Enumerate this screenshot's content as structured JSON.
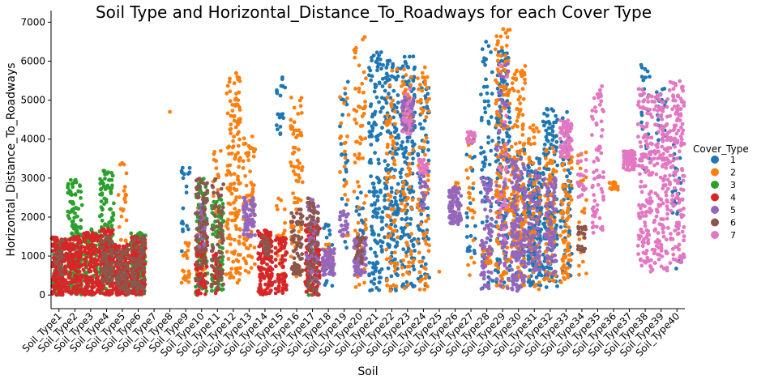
{
  "chart_data": {
    "type": "scatter",
    "subtype": "swarm",
    "title": "Soil Type and Horizontal_Distance_To_Roadways for each Cover Type",
    "xlabel": "Soil",
    "ylabel": "Horizontal_Distance_To_Roadways",
    "ylim": [
      -350,
      7300
    ],
    "yticks": [
      0,
      1000,
      2000,
      3000,
      4000,
      5000,
      6000,
      7000
    ],
    "categories": [
      "Soil_Type1",
      "Soil_Type2",
      "Soil_Type3",
      "Soil_Type4",
      "Soil_Type5",
      "Soil_Type6",
      "Soil_Type7",
      "Soil_Type8",
      "Soil_Type9",
      "Soil_Type10",
      "Soil_Type11",
      "Soil_Type12",
      "Soil_Type13",
      "Soil_Type14",
      "Soil_Type15",
      "Soil_Type16",
      "Soil_Type17",
      "Soil_Type18",
      "Soil_Type19",
      "Soil_Type20",
      "Soil_Type21",
      "Soil_Type22",
      "Soil_Type23",
      "Soil_Type24",
      "Soil_Type25",
      "Soil_Type26",
      "Soil_Type27",
      "Soil_Type28",
      "Soil_Type29",
      "Soil_Type30",
      "Soil_Type31",
      "Soil_Type32",
      "Soil_Type33",
      "Soil_Type34",
      "Soil_Type35",
      "Soil_Type36",
      "Soil_Type37",
      "Soil_Type38",
      "Soil_Type39",
      "Soil_Type40"
    ],
    "grid": false,
    "legend": {
      "title": "Cover_Type",
      "placement": "right",
      "entries": [
        "1",
        "2",
        "3",
        "4",
        "5",
        "6",
        "7"
      ]
    },
    "colors": {
      "1": "#1f77b4",
      "2": "#ff7f0e",
      "3": "#2ca02c",
      "4": "#d62728",
      "5": "#9467bd",
      "6": "#8c564b",
      "7": "#e377c2"
    },
    "series": [
      {
        "name": "1",
        "ranges": [
          {
            "category": "Soil_Type9",
            "y_min": 1100,
            "y_max": 3300,
            "density": "low"
          },
          {
            "category": "Soil_Type10",
            "y_min": 1000,
            "y_max": 2800,
            "density": "low"
          },
          {
            "category": "Soil_Type15",
            "y_min": 4100,
            "y_max": 5700,
            "density": "low"
          },
          {
            "category": "Soil_Type18",
            "y_min": 100,
            "y_max": 2000,
            "density": "low"
          },
          {
            "category": "Soil_Type19",
            "y_min": 1100,
            "y_max": 5500,
            "density": "low"
          },
          {
            "category": "Soil_Type20",
            "y_min": 1000,
            "y_max": 2700,
            "density": "low"
          },
          {
            "category": "Soil_Type21",
            "y_min": 100,
            "y_max": 6300,
            "density": "high"
          },
          {
            "category": "Soil_Type22",
            "y_min": 100,
            "y_max": 6100,
            "density": "high"
          },
          {
            "category": "Soil_Type23",
            "y_min": 100,
            "y_max": 6200,
            "density": "high"
          },
          {
            "category": "Soil_Type24",
            "y_min": 100,
            "y_max": 5600,
            "density": "medium"
          },
          {
            "category": "Soil_Type27",
            "y_min": 1000,
            "y_max": 4000,
            "density": "low"
          },
          {
            "category": "Soil_Type28",
            "y_min": 100,
            "y_max": 6500,
            "density": "medium"
          },
          {
            "category": "Soil_Type29",
            "y_min": 200,
            "y_max": 6400,
            "density": "high"
          },
          {
            "category": "Soil_Type30",
            "y_min": 200,
            "y_max": 3800,
            "density": "medium"
          },
          {
            "category": "Soil_Type31",
            "y_min": 200,
            "y_max": 3600,
            "density": "high"
          },
          {
            "category": "Soil_Type32",
            "y_min": 200,
            "y_max": 4800,
            "density": "high"
          },
          {
            "category": "Soil_Type33",
            "y_min": 300,
            "y_max": 4700,
            "density": "medium"
          },
          {
            "category": "Soil_Type38",
            "y_min": 3000,
            "y_max": 6100,
            "density": "low"
          },
          {
            "category": "Soil_Type39",
            "y_min": 3800,
            "y_max": 5300,
            "density": "low"
          },
          {
            "category": "Soil_Type40",
            "y_min": 300,
            "y_max": 4000,
            "density": "low"
          }
        ]
      },
      {
        "name": "2",
        "ranges": [
          {
            "category": "Soil_Type5",
            "y_min": 1200,
            "y_max": 3400,
            "density": "low"
          },
          {
            "category": "Soil_Type8",
            "y_min": 4700,
            "y_max": 4700,
            "density": "single"
          },
          {
            "category": "Soil_Type9",
            "y_min": 300,
            "y_max": 1400,
            "density": "low"
          },
          {
            "category": "Soil_Type10",
            "y_min": 200,
            "y_max": 3100,
            "density": "low"
          },
          {
            "category": "Soil_Type11",
            "y_min": 300,
            "y_max": 3700,
            "density": "low"
          },
          {
            "category": "Soil_Type12",
            "y_min": 300,
            "y_max": 5700,
            "density": "high"
          },
          {
            "category": "Soil_Type13",
            "y_min": 500,
            "y_max": 4100,
            "density": "medium"
          },
          {
            "category": "Soil_Type15",
            "y_min": 400,
            "y_max": 2600,
            "density": "low"
          },
          {
            "category": "Soil_Type16",
            "y_min": 400,
            "y_max": 5100,
            "density": "medium"
          },
          {
            "category": "Soil_Type18",
            "y_min": 600,
            "y_max": 1300,
            "density": "low"
          },
          {
            "category": "Soil_Type19",
            "y_min": 1200,
            "y_max": 5500,
            "density": "low"
          },
          {
            "category": "Soil_Type20",
            "y_min": 200,
            "y_max": 6700,
            "density": "medium"
          },
          {
            "category": "Soil_Type22",
            "y_min": 100,
            "y_max": 5800,
            "density": "medium"
          },
          {
            "category": "Soil_Type23",
            "y_min": 100,
            "y_max": 5800,
            "density": "medium"
          },
          {
            "category": "Soil_Type24",
            "y_min": 100,
            "y_max": 5900,
            "density": "medium"
          },
          {
            "category": "Soil_Type25",
            "y_min": 600,
            "y_max": 600,
            "density": "single"
          },
          {
            "category": "Soil_Type26",
            "y_min": 1900,
            "y_max": 2900,
            "density": "low"
          },
          {
            "category": "Soil_Type27",
            "y_min": 500,
            "y_max": 4100,
            "density": "low"
          },
          {
            "category": "Soil_Type28",
            "y_min": 800,
            "y_max": 1200,
            "density": "low"
          },
          {
            "category": "Soil_Type29",
            "y_min": 100,
            "y_max": 6900,
            "density": "high"
          },
          {
            "category": "Soil_Type30",
            "y_min": 200,
            "y_max": 5900,
            "density": "high"
          },
          {
            "category": "Soil_Type31",
            "y_min": 100,
            "y_max": 4400,
            "density": "medium"
          },
          {
            "category": "Soil_Type32",
            "y_min": 300,
            "y_max": 3900,
            "density": "medium"
          },
          {
            "category": "Soil_Type33",
            "y_min": 300,
            "y_max": 3600,
            "density": "medium"
          },
          {
            "category": "Soil_Type34",
            "y_min": 500,
            "y_max": 3700,
            "density": "low"
          },
          {
            "category": "Soil_Type36",
            "y_min": 2700,
            "y_max": 2900,
            "density": "low"
          }
        ]
      },
      {
        "name": "3",
        "ranges": [
          {
            "category": "Soil_Type1",
            "y_min": 0,
            "y_max": 1400,
            "density": "medium"
          },
          {
            "category": "Soil_Type2",
            "y_min": 0,
            "y_max": 3000,
            "density": "high"
          },
          {
            "category": "Soil_Type3",
            "y_min": 0,
            "y_max": 1700,
            "density": "medium"
          },
          {
            "category": "Soil_Type4",
            "y_min": 0,
            "y_max": 3200,
            "density": "high"
          },
          {
            "category": "Soil_Type6",
            "y_min": 0,
            "y_max": 1600,
            "density": "high"
          },
          {
            "category": "Soil_Type10",
            "y_min": 0,
            "y_max": 3000,
            "density": "medium"
          },
          {
            "category": "Soil_Type11",
            "y_min": 100,
            "y_max": 2500,
            "density": "medium"
          },
          {
            "category": "Soil_Type17",
            "y_min": 0,
            "y_max": 1500,
            "density": "low"
          }
        ]
      },
      {
        "name": "4",
        "ranges": [
          {
            "category": "Soil_Type1",
            "y_min": 0,
            "y_max": 1500,
            "density": "high"
          },
          {
            "category": "Soil_Type2",
            "y_min": 0,
            "y_max": 1500,
            "density": "high"
          },
          {
            "category": "Soil_Type3",
            "y_min": 0,
            "y_max": 1600,
            "density": "high"
          },
          {
            "category": "Soil_Type4",
            "y_min": 0,
            "y_max": 1700,
            "density": "high"
          },
          {
            "category": "Soil_Type5",
            "y_min": 0,
            "y_max": 1300,
            "density": "high"
          },
          {
            "category": "Soil_Type6",
            "y_min": 0,
            "y_max": 1500,
            "density": "high"
          },
          {
            "category": "Soil_Type10",
            "y_min": 0,
            "y_max": 1600,
            "density": "medium"
          },
          {
            "category": "Soil_Type11",
            "y_min": 0,
            "y_max": 1100,
            "density": "low"
          },
          {
            "category": "Soil_Type14",
            "y_min": 0,
            "y_max": 1700,
            "density": "high"
          },
          {
            "category": "Soil_Type15",
            "y_min": 0,
            "y_max": 1500,
            "density": "medium"
          },
          {
            "category": "Soil_Type17",
            "y_min": 0,
            "y_max": 1800,
            "density": "high"
          }
        ]
      },
      {
        "name": "5",
        "ranges": [
          {
            "category": "Soil_Type10",
            "y_min": 1200,
            "y_max": 2400,
            "density": "low"
          },
          {
            "category": "Soil_Type13",
            "y_min": 1500,
            "y_max": 2500,
            "density": "medium"
          },
          {
            "category": "Soil_Type17",
            "y_min": 300,
            "y_max": 2500,
            "density": "medium"
          },
          {
            "category": "Soil_Type18",
            "y_min": 500,
            "y_max": 1200,
            "density": "medium"
          },
          {
            "category": "Soil_Type19",
            "y_min": 1500,
            "y_max": 2200,
            "density": "low"
          },
          {
            "category": "Soil_Type20",
            "y_min": 500,
            "y_max": 1500,
            "density": "medium"
          },
          {
            "category": "Soil_Type23",
            "y_min": 4200,
            "y_max": 5100,
            "density": "medium"
          },
          {
            "category": "Soil_Type24",
            "y_min": 2200,
            "y_max": 3200,
            "density": "low"
          },
          {
            "category": "Soil_Type26",
            "y_min": 1800,
            "y_max": 2800,
            "density": "medium"
          },
          {
            "category": "Soil_Type28",
            "y_min": 100,
            "y_max": 3000,
            "density": "medium"
          },
          {
            "category": "Soil_Type29",
            "y_min": 100,
            "y_max": 6000,
            "density": "medium"
          },
          {
            "category": "Soil_Type30",
            "y_min": 100,
            "y_max": 3500,
            "density": "high"
          },
          {
            "category": "Soil_Type31",
            "y_min": 500,
            "y_max": 3200,
            "density": "medium"
          },
          {
            "category": "Soil_Type32",
            "y_min": 500,
            "y_max": 3000,
            "density": "medium"
          }
        ]
      },
      {
        "name": "6",
        "ranges": [
          {
            "category": "Soil_Type1",
            "y_min": 500,
            "y_max": 1400,
            "density": "low"
          },
          {
            "category": "Soil_Type4",
            "y_min": 300,
            "y_max": 1500,
            "density": "medium"
          },
          {
            "category": "Soil_Type5",
            "y_min": 0,
            "y_max": 1200,
            "density": "medium"
          },
          {
            "category": "Soil_Type6",
            "y_min": 0,
            "y_max": 1600,
            "density": "medium"
          },
          {
            "category": "Soil_Type10",
            "y_min": 200,
            "y_max": 3000,
            "density": "medium"
          },
          {
            "category": "Soil_Type11",
            "y_min": 200,
            "y_max": 3000,
            "density": "medium"
          },
          {
            "category": "Soil_Type14",
            "y_min": 1000,
            "y_max": 1500,
            "density": "low"
          },
          {
            "category": "Soil_Type16",
            "y_min": 500,
            "y_max": 2200,
            "density": "medium"
          },
          {
            "category": "Soil_Type17",
            "y_min": 0,
            "y_max": 2500,
            "density": "medium"
          },
          {
            "category": "Soil_Type20",
            "y_min": 800,
            "y_max": 1500,
            "density": "low"
          },
          {
            "category": "Soil_Type34",
            "y_min": 1000,
            "y_max": 1800,
            "density": "low"
          }
        ]
      },
      {
        "name": "7",
        "ranges": [
          {
            "category": "Soil_Type23",
            "y_min": 4100,
            "y_max": 5300,
            "density": "low"
          },
          {
            "category": "Soil_Type24",
            "y_min": 3100,
            "y_max": 3500,
            "density": "low"
          },
          {
            "category": "Soil_Type27",
            "y_min": 3900,
            "y_max": 4200,
            "density": "low"
          },
          {
            "category": "Soil_Type29",
            "y_min": 1400,
            "y_max": 6300,
            "density": "low"
          },
          {
            "category": "Soil_Type33",
            "y_min": 3500,
            "y_max": 4500,
            "density": "medium"
          },
          {
            "category": "Soil_Type34",
            "y_min": 2500,
            "y_max": 3700,
            "density": "low"
          },
          {
            "category": "Soil_Type35",
            "y_min": 1400,
            "y_max": 5400,
            "density": "medium"
          },
          {
            "category": "Soil_Type37",
            "y_min": 3200,
            "y_max": 3700,
            "density": "medium"
          },
          {
            "category": "Soil_Type38",
            "y_min": 600,
            "y_max": 5300,
            "density": "high"
          },
          {
            "category": "Soil_Type39",
            "y_min": 600,
            "y_max": 5200,
            "density": "high"
          },
          {
            "category": "Soil_Type40",
            "y_min": 700,
            "y_max": 5500,
            "density": "high"
          }
        ]
      }
    ]
  }
}
